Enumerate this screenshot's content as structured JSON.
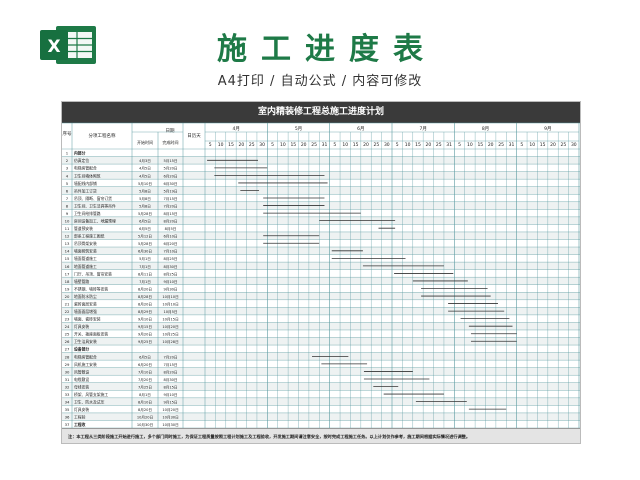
{
  "page": {
    "title": "施工进度表",
    "subtitle": "A4打印 / 自动公式 / 内容可修改",
    "logo_icon": "excel-logo-icon",
    "accent": "#1e7a47"
  },
  "sheet": {
    "title": "室内精装修工程总施工进度计划",
    "header": {
      "seq": "序号",
      "name": "分项工程名称",
      "date": "日期",
      "start": "开始时间",
      "end": "完成时间",
      "days": "日历天"
    },
    "months": [
      "4月",
      "5月",
      "6月",
      "7月",
      "8月",
      "9月"
    ],
    "day_ticks": [
      "5",
      "10",
      "15",
      "20",
      "25",
      "30",
      "5",
      "10",
      "15",
      "20",
      "25",
      "31",
      "5",
      "10",
      "15",
      "20",
      "25",
      "30",
      "5",
      "10",
      "15",
      "20",
      "25",
      "31",
      "5",
      "10",
      "15",
      "20",
      "25",
      "31",
      "5",
      "10",
      "15",
      "20",
      "25",
      "30"
    ],
    "rows": [
      {
        "seq": "1",
        "name": "内部分",
        "start": "",
        "end": "",
        "bar": null,
        "bold": true
      },
      {
        "seq": "2",
        "name": "仿真定位",
        "start": "4月3日",
        "end": "5月15日",
        "bar": [
          0.2,
          5.1
        ]
      },
      {
        "seq": "3",
        "name": "电梯房管配合",
        "start": "4月5日",
        "end": "5月20日",
        "bar": [
          0.9,
          6.0
        ]
      },
      {
        "seq": "4",
        "name": "卫生间墙体砌筑",
        "start": "4月5日",
        "end": "6月20日",
        "bar": [
          0.9,
          11.5
        ]
      },
      {
        "seq": "5",
        "name": "墙配线内部铺",
        "start": "5月10日",
        "end": "6月30日",
        "bar": [
          3.2,
          11.8
        ]
      },
      {
        "seq": "6",
        "name": "吊件加工订货",
        "start": "5月8日",
        "end": "5月19日",
        "bar": [
          3.4,
          5.2
        ]
      },
      {
        "seq": "7",
        "name": "吊顶、隔断、窗帘订货",
        "start": "5月8日",
        "end": "7月15日",
        "bar": [
          5.6,
          11.5
        ]
      },
      {
        "seq": "8",
        "name": "卫生间、卫生洁具等吊件",
        "start": "5月8日",
        "end": "7月20日",
        "bar": [
          5.6,
          11.5
        ]
      },
      {
        "seq": "9",
        "name": "卫生间给排管路",
        "start": "5月28日",
        "end": "8月15日",
        "bar": [
          5.6,
          15.0
        ]
      },
      {
        "seq": "10",
        "name": "房间设备加工、地漏预埋",
        "start": "6月5日",
        "end": "8月20日",
        "bar": [
          11.0,
          18.3
        ]
      },
      {
        "seq": "11",
        "name": "管道预安装",
        "start": "6月5日",
        "end": "8月5日",
        "bar": [
          16.7,
          18.3
        ]
      },
      {
        "seq": "12",
        "name": "部系工程施工图纸",
        "start": "5月12日",
        "end": "6月10日",
        "bar": [
          5.6,
          11.0
        ]
      },
      {
        "seq": "13",
        "name": "吊顶骨架安装",
        "start": "5月28日",
        "end": "6月20日",
        "bar": [
          5.6,
          11.0
        ]
      },
      {
        "seq": "14",
        "name": "墙面砌筑安装",
        "start": "6月30日",
        "end": "7月10日",
        "bar": [
          12.2,
          15.2
        ]
      },
      {
        "seq": "15",
        "name": "墙面管道施工",
        "start": "5月1日",
        "end": "8月25日",
        "bar": [
          12.2,
          19.3
        ]
      },
      {
        "seq": "16",
        "name": "地面管道施工",
        "start": "7月1日",
        "end": "8月30日",
        "bar": [
          15.2,
          23.0
        ]
      },
      {
        "seq": "17",
        "name": "门厅、吊顶、窗帘安装",
        "start": "8月11日",
        "end": "8月25日",
        "bar": [
          18.2,
          23.9
        ]
      },
      {
        "seq": "18",
        "name": "墙壁管路",
        "start": "7月1日",
        "end": "9月10日",
        "bar": [
          20.0,
          25.3
        ]
      },
      {
        "seq": "19",
        "name": "不锈钢、墙砖等安装",
        "start": "8月20日",
        "end": "9月30日",
        "bar": [
          20.8,
          27.2
        ]
      },
      {
        "seq": "20",
        "name": "地面防水防尘",
        "start": "8月28日",
        "end": "10月10日",
        "bar": [
          20.8,
          27.5
        ]
      },
      {
        "seq": "21",
        "name": "瓷砖面层安装",
        "start": "8月20日",
        "end": "10月10日",
        "bar": [
          23.4,
          28.2
        ]
      },
      {
        "seq": "22",
        "name": "墙面面层增强",
        "start": "8月29日",
        "end": "10月5日",
        "bar": [
          23.4,
          28.8
        ]
      },
      {
        "seq": "23",
        "name": "墙面、瓷砖安装",
        "start": "9月10日",
        "end": "10月15日",
        "bar": [
          24.6,
          29.3
        ]
      },
      {
        "seq": "24",
        "name": "灯具安装",
        "start": "9月15日",
        "end": "10月20日",
        "bar": [
          25.4,
          29.6
        ]
      },
      {
        "seq": "25",
        "name": "开关、插座面板安装",
        "start": "9月20日",
        "end": "10月25日",
        "bar": [
          25.6,
          30.0
        ]
      },
      {
        "seq": "26",
        "name": "卫生洁具安装",
        "start": "9月25日",
        "end": "10月28日",
        "bar": [
          25.6,
          30.0
        ]
      },
      {
        "seq": "27",
        "name": "设备部分",
        "start": "",
        "end": "",
        "bar": null,
        "bold": true
      },
      {
        "seq": "28",
        "name": "电梯房管配合",
        "start": "6月5日",
        "end": "7月20日",
        "bar": [
          10.3,
          13.8
        ]
      },
      {
        "seq": "29",
        "name": "风机施工安装",
        "start": "6月20日",
        "end": "7月15日",
        "bar": [
          11.2,
          15.6
        ]
      },
      {
        "seq": "30",
        "name": "风管敷设",
        "start": "7月10日",
        "end": "8月20日",
        "bar": [
          15.3,
          20.0
        ]
      },
      {
        "seq": "31",
        "name": "电缆敷设",
        "start": "7月20日",
        "end": "8月30日",
        "bar": [
          15.3,
          21.6
        ]
      },
      {
        "seq": "32",
        "name": "母线安装",
        "start": "7月25日",
        "end": "8月15日",
        "bar": [
          16.2,
          18.6
        ]
      },
      {
        "seq": "33",
        "name": "桥架、风管支架施工",
        "start": "8月1日",
        "end": "9月10日",
        "bar": [
          17.2,
          23.0
        ]
      },
      {
        "seq": "34",
        "name": "卫生、防水及试压",
        "start": "8月10日",
        "end": "9月15日",
        "bar": [
          20.3,
          25.2
        ]
      },
      {
        "seq": "35",
        "name": "灯具安装",
        "start": "8月20日",
        "end": "10月20日",
        "bar": [
          25.4,
          29.0
        ]
      },
      {
        "seq": "36",
        "name": "工程验",
        "start": "10月20日",
        "end": "10月30日",
        "bar": null
      },
      {
        "seq": "37",
        "name": "工程收",
        "start": "10月30日",
        "end": "10月30日",
        "bar": null,
        "bold": true
      }
    ],
    "note": "注：本工程从三类阶段施工开始进行施工，多个部门同时施工，为保证工程质量按照工程计划施工及工程验收，开发施工期间请注意安全，按时完成工程施工任务。以上计划仅作参考，施工期间根据实际情况进行调整。"
  },
  "colors": {
    "header_bg": "#3a3a3a",
    "row_band": "#eef2f2",
    "grid_line": "#5a9aa0",
    "bar": "#333333"
  }
}
